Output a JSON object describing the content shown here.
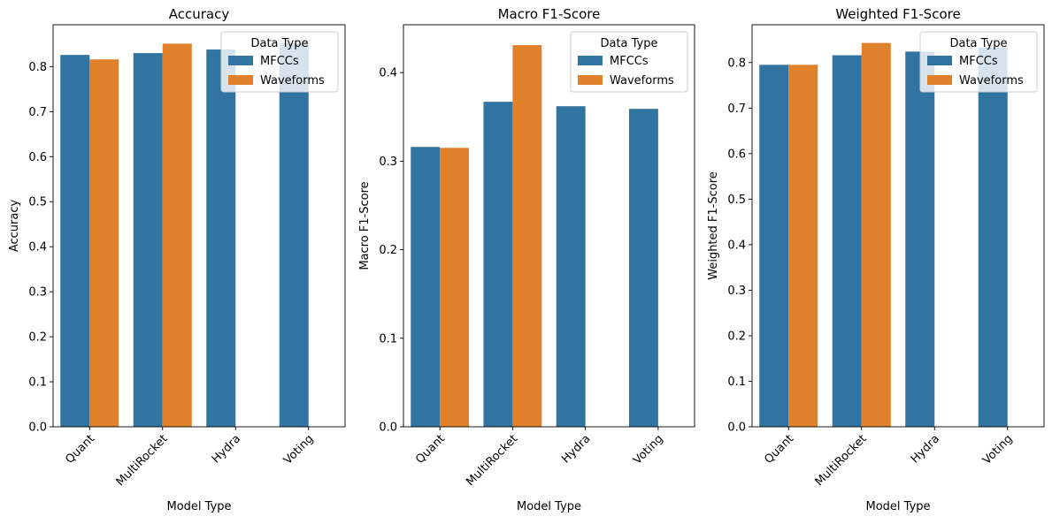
{
  "chart_data": [
    {
      "type": "bar",
      "title": "Accuracy",
      "xlabel": "Model Type",
      "ylabel": "Accuracy",
      "categories": [
        "Quant",
        "MultiRocket",
        "Hydra",
        "Voting"
      ],
      "ylim": [
        0,
        0.893
      ],
      "yticks": [
        "0.0",
        "0.1",
        "0.2",
        "0.3",
        "0.4",
        "0.5",
        "0.6",
        "0.7",
        "0.8"
      ],
      "legend_title": "Data Type",
      "legend_position": "top-right",
      "series": [
        {
          "name": "MFCCs",
          "values": [
            0.826,
            0.83,
            0.838,
            0.852
          ]
        },
        {
          "name": "Waveforms",
          "values": [
            0.816,
            0.851,
            null,
            null
          ]
        }
      ]
    },
    {
      "type": "bar",
      "title": "Macro F1-Score",
      "xlabel": "Model Type",
      "ylabel": "Macro F1-Score",
      "categories": [
        "Quant",
        "MultiRocket",
        "Hydra",
        "Voting"
      ],
      "ylim": [
        0,
        0.454
      ],
      "yticks": [
        "0.0",
        "0.1",
        "0.2",
        "0.3",
        "0.4"
      ],
      "legend_title": "Data Type",
      "legend_position": "top-right",
      "series": [
        {
          "name": "MFCCs",
          "values": [
            0.316,
            0.367,
            0.362,
            0.359
          ]
        },
        {
          "name": "Waveforms",
          "values": [
            0.315,
            0.431,
            null,
            null
          ]
        }
      ]
    },
    {
      "type": "bar",
      "title": "Weighted F1-Score",
      "xlabel": "Model Type",
      "ylabel": "Weighted F1-Score",
      "categories": [
        "Quant",
        "MultiRocket",
        "Hydra",
        "Voting"
      ],
      "ylim": [
        0,
        0.883
      ],
      "yticks": [
        "0.0",
        "0.1",
        "0.2",
        "0.3",
        "0.4",
        "0.5",
        "0.6",
        "0.7",
        "0.8"
      ],
      "legend_title": "Data Type",
      "legend_position": "top-right",
      "series": [
        {
          "name": "MFCCs",
          "values": [
            0.795,
            0.816,
            0.824,
            0.833
          ]
        },
        {
          "name": "Waveforms",
          "values": [
            0.795,
            0.843,
            null,
            null
          ]
        }
      ]
    }
  ],
  "colors": {
    "MFCCs": "#3274a1",
    "Waveforms": "#e1812c"
  }
}
